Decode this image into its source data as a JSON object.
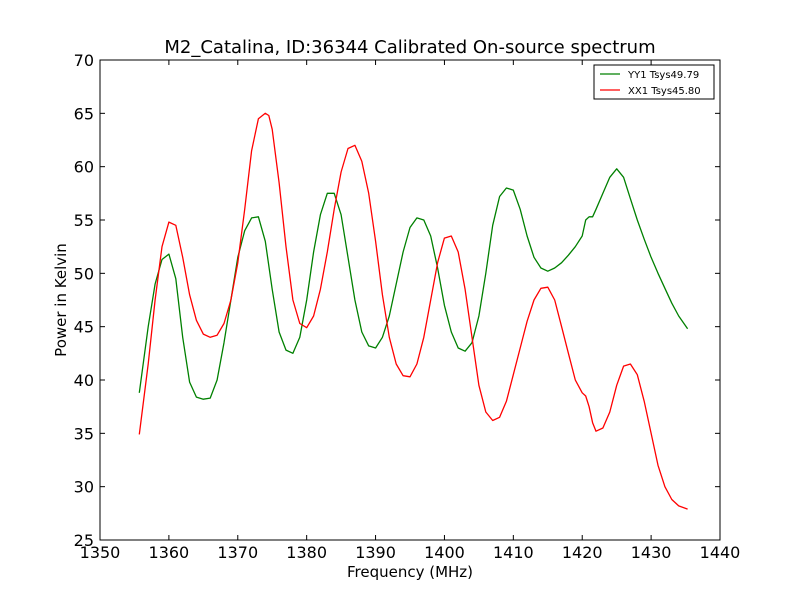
{
  "chart_data": {
    "type": "line",
    "title": "M2_Catalina, ID:36344 Calibrated On-source spectrum",
    "xlabel": "Frequency (MHz)",
    "ylabel": "Power in Kelvin",
    "xlim": [
      1350,
      1440
    ],
    "ylim": [
      25,
      70
    ],
    "xticks": [
      1350,
      1360,
      1370,
      1380,
      1390,
      1400,
      1410,
      1420,
      1430,
      1440
    ],
    "yticks": [
      25,
      30,
      35,
      40,
      45,
      50,
      55,
      60,
      65,
      70
    ],
    "grid": false,
    "legend_position": "top-right",
    "series": [
      {
        "name": "YY1 Tsys49.79",
        "color": "#008000",
        "x": [
          1355.7,
          1357.0,
          1358.0,
          1359.0,
          1360.0,
          1361.0,
          1362.0,
          1363.0,
          1364.0,
          1365.0,
          1366.0,
          1367.0,
          1368.0,
          1369.0,
          1370.0,
          1371.0,
          1372.0,
          1373.0,
          1374.0,
          1375.0,
          1376.0,
          1377.0,
          1378.0,
          1379.0,
          1380.0,
          1381.0,
          1382.0,
          1383.0,
          1384.0,
          1385.0,
          1386.0,
          1387.0,
          1388.0,
          1389.0,
          1390.0,
          1391.0,
          1392.0,
          1393.0,
          1394.0,
          1395.0,
          1396.0,
          1397.0,
          1398.0,
          1399.0,
          1400.0,
          1401.0,
          1402.0,
          1403.0,
          1404.0,
          1405.0,
          1406.0,
          1407.0,
          1408.0,
          1409.0,
          1410.0,
          1411.0,
          1412.0,
          1413.0,
          1414.0,
          1415.0,
          1416.0,
          1417.0,
          1418.0,
          1419.0,
          1420.0,
          1420.5,
          1421.0,
          1421.5,
          1422.0,
          1423.0,
          1424.0,
          1425.0,
          1426.0,
          1427.0,
          1428.0,
          1429.0,
          1430.0,
          1431.0,
          1432.0,
          1433.0,
          1434.0,
          1435.3
        ],
        "values": [
          38.8,
          45.0,
          49.0,
          51.3,
          51.8,
          49.5,
          44.0,
          39.8,
          38.4,
          38.2,
          38.3,
          40.0,
          43.5,
          47.5,
          51.5,
          54.0,
          55.2,
          55.3,
          53.0,
          48.5,
          44.5,
          42.8,
          42.5,
          44.0,
          47.5,
          52.0,
          55.5,
          57.5,
          57.5,
          55.5,
          51.5,
          47.5,
          44.5,
          43.2,
          43.0,
          44.0,
          46.0,
          49.0,
          52.0,
          54.3,
          55.2,
          55.0,
          53.5,
          50.5,
          47.0,
          44.5,
          43.0,
          42.7,
          43.5,
          46.0,
          50.0,
          54.5,
          57.2,
          58.0,
          57.8,
          56.0,
          53.5,
          51.5,
          50.5,
          50.2,
          50.5,
          51.0,
          51.7,
          52.5,
          53.5,
          55.0,
          55.3,
          55.3,
          56.0,
          57.5,
          59.0,
          59.8,
          59.0,
          57.0,
          55.0,
          53.2,
          51.5,
          50.0,
          48.6,
          47.2,
          46.0,
          44.8
        ]
      },
      {
        "name": "XX1 Tsys45.80",
        "color": "#ff0000",
        "x": [
          1355.7,
          1357.0,
          1358.0,
          1359.0,
          1360.0,
          1361.0,
          1362.0,
          1363.0,
          1364.0,
          1365.0,
          1366.0,
          1367.0,
          1368.0,
          1369.0,
          1370.0,
          1371.0,
          1372.0,
          1373.0,
          1374.0,
          1374.5,
          1375.0,
          1376.0,
          1377.0,
          1378.0,
          1379.0,
          1380.0,
          1381.0,
          1382.0,
          1383.0,
          1384.0,
          1385.0,
          1386.0,
          1387.0,
          1388.0,
          1389.0,
          1390.0,
          1391.0,
          1392.0,
          1393.0,
          1394.0,
          1395.0,
          1396.0,
          1397.0,
          1398.0,
          1399.0,
          1400.0,
          1401.0,
          1402.0,
          1403.0,
          1404.0,
          1405.0,
          1406.0,
          1407.0,
          1408.0,
          1409.0,
          1410.0,
          1411.0,
          1412.0,
          1413.0,
          1414.0,
          1415.0,
          1416.0,
          1417.0,
          1418.0,
          1419.0,
          1420.0,
          1420.5,
          1421.0,
          1421.5,
          1422.0,
          1423.0,
          1424.0,
          1425.0,
          1426.0,
          1427.0,
          1428.0,
          1429.0,
          1430.0,
          1431.0,
          1432.0,
          1433.0,
          1434.0,
          1435.3
        ],
        "values": [
          34.9,
          41.5,
          47.5,
          52.5,
          54.8,
          54.5,
          51.5,
          48.0,
          45.6,
          44.3,
          44.0,
          44.2,
          45.3,
          47.5,
          51.0,
          56.0,
          61.5,
          64.5,
          65.0,
          64.8,
          63.5,
          58.5,
          52.5,
          47.5,
          45.3,
          44.9,
          46.0,
          48.5,
          52.0,
          56.0,
          59.5,
          61.7,
          62.0,
          60.5,
          57.5,
          53.0,
          48.0,
          44.0,
          41.5,
          40.4,
          40.3,
          41.5,
          44.0,
          47.5,
          51.0,
          53.3,
          53.5,
          52.0,
          48.5,
          44.0,
          39.5,
          37.0,
          36.2,
          36.5,
          38.0,
          40.5,
          43.0,
          45.5,
          47.5,
          48.6,
          48.7,
          47.5,
          45.0,
          42.5,
          40.0,
          38.8,
          38.5,
          37.5,
          36.0,
          35.2,
          35.5,
          37.0,
          39.5,
          41.3,
          41.5,
          40.5,
          38.0,
          35.0,
          32.0,
          30.0,
          28.8,
          28.2,
          27.9
        ]
      }
    ]
  }
}
